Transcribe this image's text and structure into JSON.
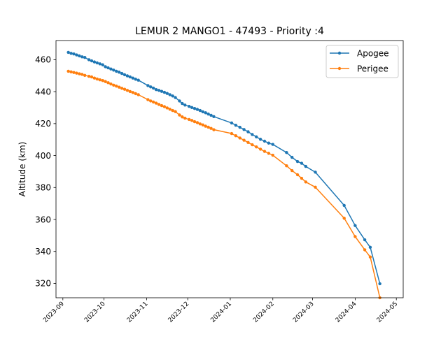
{
  "chart_data": {
    "type": "line",
    "title": "LEMUR 2 MANGO1 - 47493 - Priority :4",
    "xlabel": "",
    "ylabel": "Altitude (km)",
    "x_type": "date",
    "xlim": [
      "2023-08-27",
      "2024-05-06"
    ],
    "ylim": [
      311,
      472
    ],
    "x_ticks": [
      "2023-09",
      "2023-10",
      "2023-11",
      "2023-12",
      "2024-01",
      "2024-02",
      "2024-03",
      "2024-04",
      "2024-05"
    ],
    "y_ticks": [
      320,
      340,
      360,
      380,
      400,
      420,
      440,
      460
    ],
    "grid": false,
    "legend_position": "top-right",
    "x": [
      "2023-09-05",
      "2023-09-07",
      "2023-09-09",
      "2023-09-11",
      "2023-09-13",
      "2023-09-15",
      "2023-09-17",
      "2023-09-20",
      "2023-09-22",
      "2023-09-24",
      "2023-09-26",
      "2023-09-28",
      "2023-09-30",
      "2023-10-02",
      "2023-10-04",
      "2023-10-06",
      "2023-10-08",
      "2023-10-10",
      "2023-10-12",
      "2023-10-14",
      "2023-10-16",
      "2023-10-18",
      "2023-10-20",
      "2023-10-22",
      "2023-10-24",
      "2023-10-26",
      "2023-11-02",
      "2023-11-04",
      "2023-11-06",
      "2023-11-08",
      "2023-11-10",
      "2023-11-12",
      "2023-11-14",
      "2023-11-16",
      "2023-11-18",
      "2023-11-20",
      "2023-11-22",
      "2023-11-25",
      "2023-11-27",
      "2023-11-29",
      "2023-12-02",
      "2023-12-04",
      "2023-12-06",
      "2023-12-08",
      "2023-12-10",
      "2023-12-12",
      "2023-12-14",
      "2023-12-16",
      "2023-12-18",
      "2023-12-20",
      "2024-01-02",
      "2024-01-05",
      "2024-01-08",
      "2024-01-11",
      "2024-01-14",
      "2024-01-17",
      "2024-01-20",
      "2024-01-23",
      "2024-01-26",
      "2024-01-29",
      "2024-02-01",
      "2024-02-11",
      "2024-02-15",
      "2024-02-19",
      "2024-02-22",
      "2024-02-25",
      "2024-03-03",
      "2024-03-24",
      "2024-04-01",
      "2024-04-08",
      "2024-04-12",
      "2024-04-19"
    ],
    "series": [
      {
        "name": "Apogee",
        "color": "#1f77b4",
        "values": [
          464.6,
          464.0,
          463.6,
          463.0,
          462.4,
          461.8,
          461.4,
          460.0,
          459.3,
          458.6,
          458.0,
          457.4,
          456.8,
          455.6,
          454.9,
          454.2,
          453.5,
          452.8,
          452.2,
          451.4,
          450.6,
          449.9,
          449.2,
          448.5,
          447.8,
          447.2,
          443.8,
          443.0,
          442.2,
          441.3,
          440.8,
          440.2,
          439.6,
          438.9,
          438.1,
          437.3,
          436.3,
          434.2,
          432.6,
          431.6,
          430.8,
          430.1,
          429.5,
          428.9,
          428.2,
          427.4,
          426.8,
          426.0,
          425.2,
          424.4,
          420.4,
          419.0,
          417.7,
          416.3,
          414.9,
          413.2,
          411.7,
          410.2,
          409.0,
          407.8,
          407.0,
          401.9,
          398.9,
          396.3,
          395.2,
          393.2,
          389.6,
          368.8,
          356.2,
          347.3,
          342.6,
          319.8
        ]
      },
      {
        "name": "Perigee",
        "color": "#ff7f0e",
        "values": [
          452.8,
          452.4,
          452.0,
          451.6,
          451.2,
          450.8,
          450.2,
          449.6,
          449.2,
          448.5,
          447.9,
          447.4,
          447.0,
          446.3,
          445.6,
          444.8,
          444.1,
          443.5,
          442.8,
          442.1,
          441.5,
          440.8,
          440.1,
          439.5,
          438.8,
          438.1,
          435.0,
          434.2,
          433.5,
          432.8,
          432.0,
          431.3,
          430.6,
          429.8,
          429.0,
          428.2,
          427.5,
          425.4,
          424.2,
          423.4,
          422.6,
          422.0,
          421.2,
          420.6,
          419.8,
          419.2,
          418.4,
          417.8,
          417.0,
          416.2,
          413.8,
          412.4,
          411.0,
          409.6,
          408.2,
          406.8,
          405.4,
          404.0,
          402.6,
          401.4,
          400.2,
          393.6,
          390.6,
          388.0,
          385.8,
          383.5,
          380.2,
          360.8,
          349.3,
          341.0,
          336.5,
          311.0
        ]
      }
    ]
  }
}
